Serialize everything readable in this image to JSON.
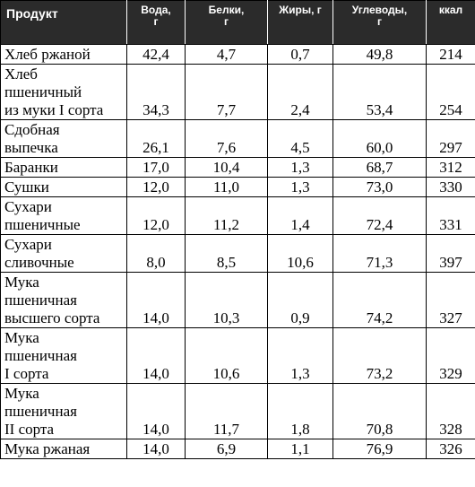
{
  "table": {
    "headers": {
      "product": "Продукт",
      "water": "Вода,",
      "water_unit": "г",
      "protein": "Белки,",
      "protein_unit": "г",
      "fat": "Жиры, г",
      "carbs": "Углеводы,",
      "carbs_unit": "г",
      "kcal": "ккал"
    },
    "rows": [
      {
        "product": [
          "Хлеб ржаной"
        ],
        "water": "42,4",
        "protein": "4,7",
        "fat": "0,7",
        "carbs": "49,8",
        "kcal": "214"
      },
      {
        "product": [
          "Хлеб",
          "пшеничный",
          "из муки I сорта"
        ],
        "water": "34,3",
        "protein": "7,7",
        "fat": "2,4",
        "carbs": "53,4",
        "kcal": "254"
      },
      {
        "product": [
          "Сдобная",
          "выпечка"
        ],
        "water": "26,1",
        "protein": "7,6",
        "fat": "4,5",
        "carbs": "60,0",
        "kcal": "297"
      },
      {
        "product": [
          "Баранки"
        ],
        "water": "17,0",
        "protein": "10,4",
        "fat": "1,3",
        "carbs": "68,7",
        "kcal": "312"
      },
      {
        "product": [
          "Сушки"
        ],
        "water": "12,0",
        "protein": "11,0",
        "fat": "1,3",
        "carbs": "73,0",
        "kcal": "330"
      },
      {
        "product": [
          "Сухари",
          "пшеничные"
        ],
        "water": "12,0",
        "protein": "11,2",
        "fat": "1,4",
        "carbs": "72,4",
        "kcal": "331"
      },
      {
        "product": [
          "Сухари",
          "сливочные"
        ],
        "water": "8,0",
        "protein": "8,5",
        "fat": "10,6",
        "carbs": "71,3",
        "kcal": "397"
      },
      {
        "product": [
          "Мука",
          "пшеничная",
          "высшего сорта"
        ],
        "water": "14,0",
        "protein": "10,3",
        "fat": "0,9",
        "carbs": "74,2",
        "kcal": "327"
      },
      {
        "product": [
          "Мука",
          "пшеничная",
          "I сорта"
        ],
        "water": "14,0",
        "protein": "10,6",
        "fat": "1,3",
        "carbs": "73,2",
        "kcal": "329"
      },
      {
        "product": [
          "Мука",
          "пшеничная",
          "II сорта"
        ],
        "water": "14,0",
        "protein": "11,7",
        "fat": "1,8",
        "carbs": "70,8",
        "kcal": "328"
      },
      {
        "product": [
          "Мука ржаная"
        ],
        "water": "14,0",
        "protein": "6,9",
        "fat": "1,1",
        "carbs": "76,9",
        "kcal": "326"
      }
    ]
  }
}
